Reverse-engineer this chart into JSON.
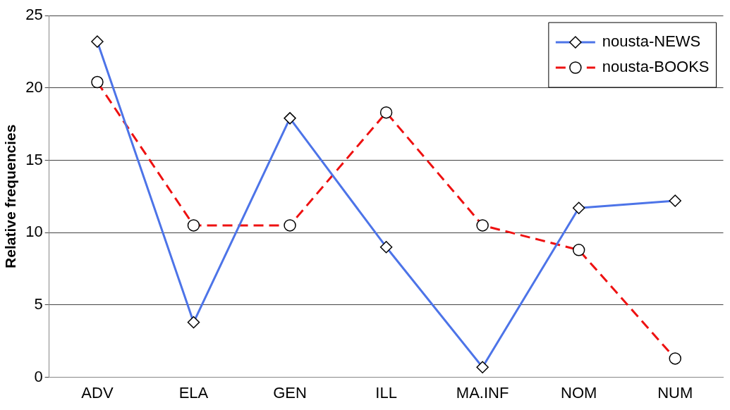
{
  "chart_data": {
    "type": "line",
    "ylabel": "Relative frequencies",
    "categories": [
      "ADV",
      "ELA",
      "GEN",
      "ILL",
      "MA.INF",
      "NOM",
      "NUM"
    ],
    "series": [
      {
        "name": "nousta-NEWS",
        "color": "#4d74e8",
        "values": [
          23.2,
          3.8,
          17.9,
          9.0,
          0.7,
          11.7,
          12.2
        ],
        "marker": "diamond",
        "line_style": "solid"
      },
      {
        "name": "nousta-BOOKS",
        "color": "#ee1111",
        "values": [
          20.4,
          10.5,
          10.5,
          18.3,
          10.5,
          8.8,
          1.3
        ],
        "marker": "circle",
        "line_style": "dashed"
      }
    ],
    "ylim": [
      0,
      25
    ],
    "yticks": [
      0,
      5,
      10,
      15,
      20,
      25
    ],
    "grid": "y",
    "legend": "top right"
  }
}
